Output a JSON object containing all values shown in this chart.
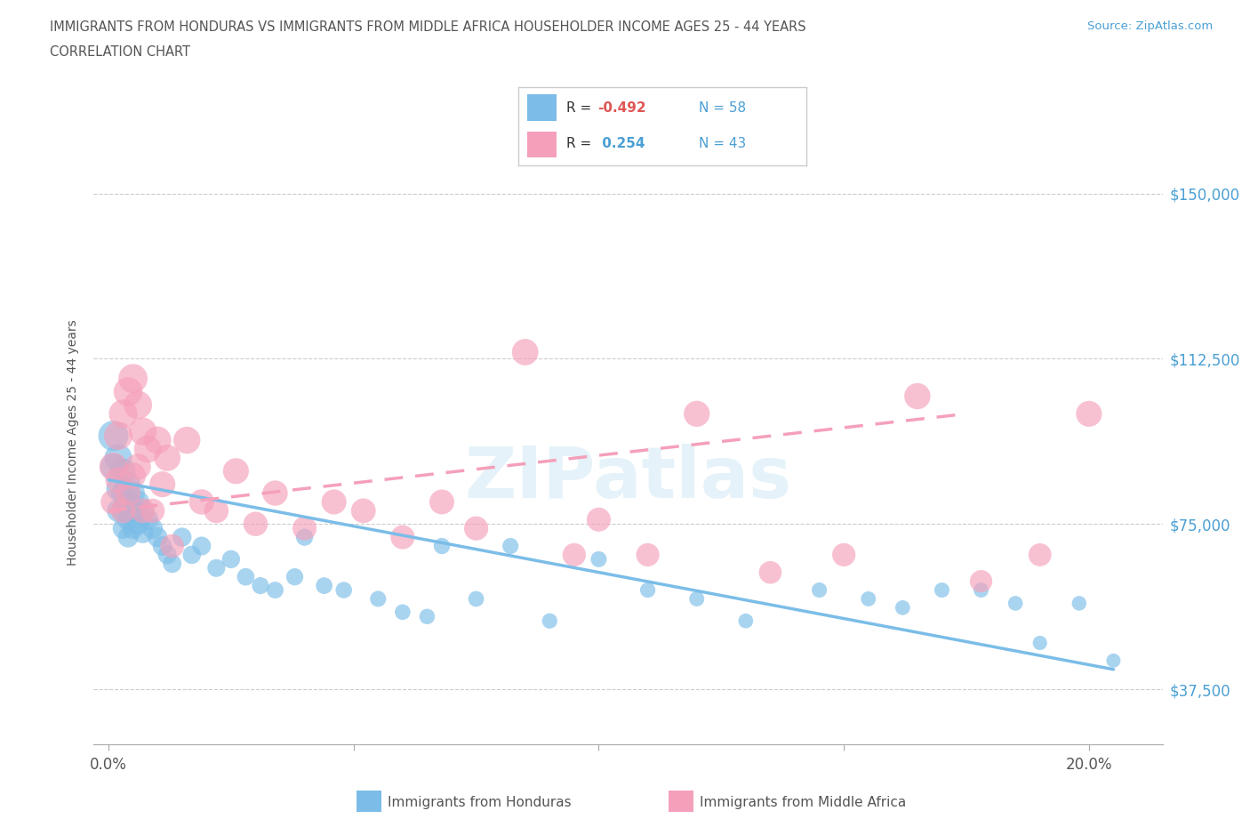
{
  "title_line1": "IMMIGRANTS FROM HONDURAS VS IMMIGRANTS FROM MIDDLE AFRICA HOUSEHOLDER INCOME AGES 25 - 44 YEARS",
  "title_line2": "CORRELATION CHART",
  "source_text": "Source: ZipAtlas.com",
  "ylabel": "Householder Income Ages 25 - 44 years",
  "y_tick_labels": [
    "$37,500",
    "$75,000",
    "$112,500",
    "$150,000"
  ],
  "y_ticks": [
    37500,
    75000,
    112500,
    150000
  ],
  "x_tick_labels": [
    "0.0%",
    "",
    "",
    "",
    "20.0%"
  ],
  "x_ticks": [
    0.0,
    0.05,
    0.1,
    0.15,
    0.2
  ],
  "xlim": [
    -0.003,
    0.215
  ],
  "ylim": [
    25000,
    162000
  ],
  "legend_labels": [
    "Immigrants from Honduras",
    "Immigrants from Middle Africa"
  ],
  "color_honduras": "#7bbde8",
  "color_middle_africa": "#f5a0ba",
  "color_blue": "#4a9fd4",
  "color_red": "#e05555",
  "color_text": "#555555",
  "color_grid": "#cccccc",
  "watermark_color": "#d0e8f5",
  "honduras_x": [
    0.001,
    0.001,
    0.002,
    0.002,
    0.002,
    0.003,
    0.003,
    0.003,
    0.003,
    0.004,
    0.004,
    0.004,
    0.004,
    0.005,
    0.005,
    0.005,
    0.006,
    0.006,
    0.007,
    0.007,
    0.008,
    0.009,
    0.01,
    0.011,
    0.012,
    0.013,
    0.015,
    0.017,
    0.019,
    0.022,
    0.025,
    0.028,
    0.031,
    0.034,
    0.038,
    0.04,
    0.044,
    0.048,
    0.055,
    0.06,
    0.065,
    0.068,
    0.075,
    0.082,
    0.09,
    0.1,
    0.11,
    0.12,
    0.13,
    0.145,
    0.155,
    0.162,
    0.17,
    0.178,
    0.185,
    0.19,
    0.198,
    0.205
  ],
  "honduras_y": [
    95000,
    88000,
    90000,
    83000,
    78000,
    87000,
    82000,
    78000,
    74000,
    84000,
    80000,
    76000,
    72000,
    82000,
    78000,
    74000,
    80000,
    75000,
    78000,
    73000,
    76000,
    74000,
    72000,
    70000,
    68000,
    66000,
    72000,
    68000,
    70000,
    65000,
    67000,
    63000,
    61000,
    60000,
    63000,
    72000,
    61000,
    60000,
    58000,
    55000,
    54000,
    70000,
    58000,
    70000,
    53000,
    67000,
    60000,
    58000,
    53000,
    60000,
    58000,
    56000,
    60000,
    60000,
    57000,
    48000,
    57000,
    44000
  ],
  "middle_africa_x": [
    0.001,
    0.001,
    0.002,
    0.002,
    0.003,
    0.003,
    0.004,
    0.004,
    0.005,
    0.005,
    0.006,
    0.006,
    0.007,
    0.007,
    0.008,
    0.009,
    0.01,
    0.011,
    0.012,
    0.013,
    0.016,
    0.019,
    0.022,
    0.026,
    0.03,
    0.034,
    0.04,
    0.046,
    0.052,
    0.06,
    0.068,
    0.075,
    0.085,
    0.095,
    0.1,
    0.11,
    0.12,
    0.135,
    0.15,
    0.165,
    0.178,
    0.19,
    0.2
  ],
  "middle_africa_y": [
    88000,
    80000,
    95000,
    85000,
    100000,
    78000,
    105000,
    82000,
    108000,
    86000,
    102000,
    88000,
    96000,
    78000,
    92000,
    78000,
    94000,
    84000,
    90000,
    70000,
    94000,
    80000,
    78000,
    87000,
    75000,
    82000,
    74000,
    80000,
    78000,
    72000,
    80000,
    74000,
    114000,
    68000,
    76000,
    68000,
    100000,
    64000,
    68000,
    104000,
    62000,
    68000,
    100000
  ],
  "honduras_sizes": [
    600,
    450,
    500,
    380,
    340,
    420,
    370,
    330,
    290,
    400,
    355,
    315,
    275,
    370,
    335,
    300,
    340,
    305,
    320,
    285,
    300,
    280,
    265,
    250,
    235,
    225,
    240,
    220,
    230,
    210,
    215,
    200,
    190,
    185,
    195,
    195,
    182,
    178,
    170,
    162,
    158,
    175,
    163,
    172,
    155,
    168,
    155,
    150,
    145,
    152,
    148,
    145,
    150,
    148,
    144,
    136,
    141,
    132
  ],
  "middle_africa_sizes": [
    520,
    420,
    530,
    440,
    540,
    400,
    550,
    420,
    560,
    440,
    530,
    450,
    510,
    400,
    490,
    390,
    500,
    440,
    460,
    370,
    480,
    420,
    400,
    440,
    390,
    420,
    380,
    410,
    400,
    380,
    405,
    385,
    460,
    358,
    378,
    355,
    445,
    340,
    356,
    450,
    330,
    345,
    440
  ]
}
